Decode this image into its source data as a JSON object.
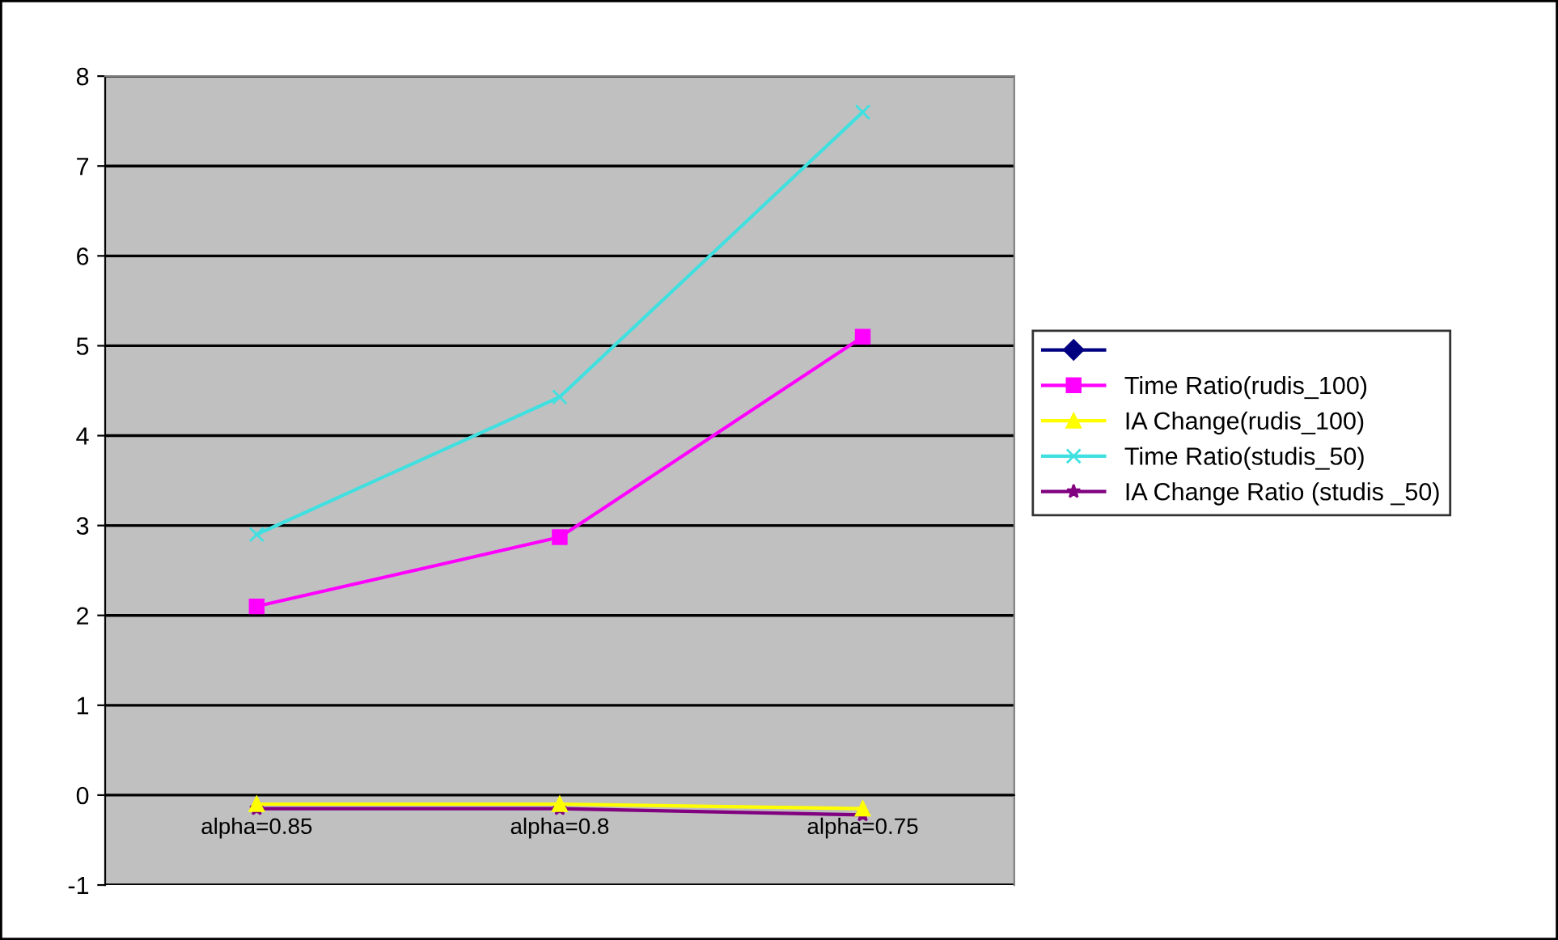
{
  "chart_data": {
    "type": "line",
    "categories": [
      "alpha=0.85",
      "alpha=0.8",
      "alpha=0.75"
    ],
    "ylim": [
      -1,
      8
    ],
    "yticks": [
      -1,
      0,
      1,
      2,
      3,
      4,
      5,
      6,
      7,
      8
    ],
    "grid": "y",
    "legend": "right",
    "series": [
      {
        "color": "#000080",
        "marker": "diamond",
        "values": [
          null,
          null,
          null
        ]
      },
      {
        "name": "Time Ratio(rudis_100)",
        "color": "#ff00ff",
        "marker": "square",
        "values": [
          2.1,
          2.87,
          5.1
        ]
      },
      {
        "name": "IA Change(rudis_100)",
        "color": "#ffff00",
        "marker": "triangle",
        "values": [
          -0.1,
          -0.1,
          -0.15
        ]
      },
      {
        "name": "Time Ratio(studis_50)",
        "color": "#40e0e0",
        "marker": "cross",
        "values": [
          2.9,
          4.43,
          7.6
        ]
      },
      {
        "name": "IA Change Ratio (studis _50)",
        "color": "#800080",
        "marker": "star",
        "values": [
          -0.15,
          -0.15,
          -0.22
        ]
      }
    ]
  }
}
